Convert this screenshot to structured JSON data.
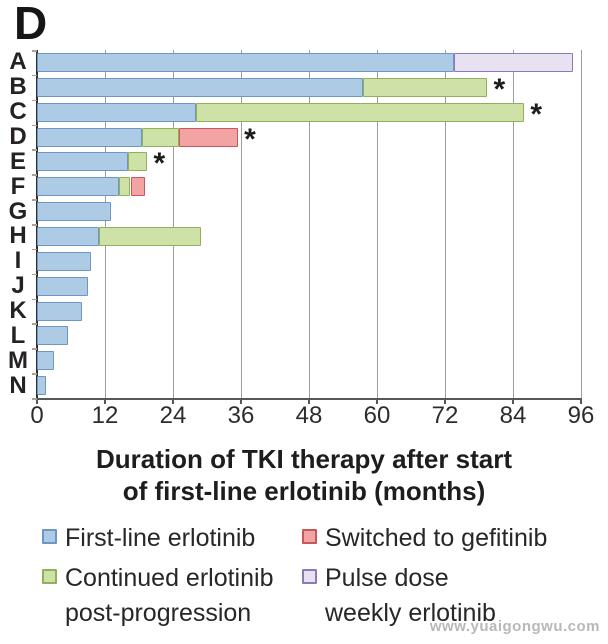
{
  "panel_label": "D",
  "watermark": "www.yuaigongwu.com",
  "chart_data": {
    "type": "bar",
    "orientation": "horizontal",
    "stacked": true,
    "title": "",
    "xlabel": "Duration of TKI therapy after start of first-line erlotinib (months)",
    "xlabel_lines": [
      "Duration of TKI therapy after start",
      "of first-line erlotinib (months)"
    ],
    "ylabel": "",
    "xlim": [
      0,
      96
    ],
    "xticks": [
      0,
      12,
      24,
      36,
      48,
      60,
      72,
      84,
      96
    ],
    "grid": true,
    "legend_position": "bottom",
    "categories": [
      "A",
      "B",
      "C",
      "D",
      "E",
      "F",
      "G",
      "H",
      "I",
      "J",
      "K",
      "L",
      "M",
      "N"
    ],
    "segment_types": {
      "first_line": {
        "label": "First-line erlotinib",
        "fill": "#aecbe5",
        "border": "#6e96c2"
      },
      "continued": {
        "label": "Continued erlotinib post-progression",
        "fill": "#cee2a8",
        "border": "#90b05b"
      },
      "switched": {
        "label": "Switched to gefitinib",
        "fill": "#f2a3a3",
        "border": "#c6585a"
      },
      "pulse": {
        "label": "Pulse dose weekly erlotinib",
        "fill": "#e7e1f1",
        "border": "#8d7ab5"
      }
    },
    "bars": [
      {
        "patient": "A",
        "segments": [
          {
            "type": "first_line",
            "months": 73.5
          },
          {
            "type": "pulse",
            "months": 21
          }
        ],
        "asterisk": false
      },
      {
        "patient": "B",
        "segments": [
          {
            "type": "first_line",
            "months": 57.5
          },
          {
            "type": "continued",
            "months": 22
          }
        ],
        "asterisk": true
      },
      {
        "patient": "C",
        "segments": [
          {
            "type": "first_line",
            "months": 28
          },
          {
            "type": "continued",
            "months": 58
          }
        ],
        "asterisk": true
      },
      {
        "patient": "D",
        "segments": [
          {
            "type": "first_line",
            "months": 18.5
          },
          {
            "type": "continued",
            "months": 6.5
          },
          {
            "type": "switched",
            "months": 10.5
          }
        ],
        "asterisk": true
      },
      {
        "patient": "E",
        "segments": [
          {
            "type": "first_line",
            "months": 16
          },
          {
            "type": "continued",
            "months": 3.5
          }
        ],
        "asterisk": true
      },
      {
        "patient": "F",
        "segments": [
          {
            "type": "first_line",
            "months": 14.5
          },
          {
            "type": "continued",
            "months": 2
          },
          {
            "type": "switched",
            "months": 2.5
          }
        ],
        "asterisk": false
      },
      {
        "patient": "G",
        "segments": [
          {
            "type": "first_line",
            "months": 13
          }
        ],
        "asterisk": false
      },
      {
        "patient": "H",
        "segments": [
          {
            "type": "first_line",
            "months": 11
          },
          {
            "type": "continued",
            "months": 18
          }
        ],
        "asterisk": false
      },
      {
        "patient": "I",
        "segments": [
          {
            "type": "first_line",
            "months": 9.5
          }
        ],
        "asterisk": false
      },
      {
        "patient": "J",
        "segments": [
          {
            "type": "first_line",
            "months": 9
          }
        ],
        "asterisk": false
      },
      {
        "patient": "K",
        "segments": [
          {
            "type": "first_line",
            "months": 8
          }
        ],
        "asterisk": false
      },
      {
        "patient": "L",
        "segments": [
          {
            "type": "first_line",
            "months": 5.5
          }
        ],
        "asterisk": false
      },
      {
        "patient": "M",
        "segments": [
          {
            "type": "first_line",
            "months": 3
          }
        ],
        "asterisk": false
      },
      {
        "patient": "N",
        "segments": [
          {
            "type": "first_line",
            "months": 1.5
          }
        ],
        "asterisk": false
      }
    ],
    "legend": [
      {
        "type": "first_line",
        "lines": [
          "First-line erlotinib"
        ]
      },
      {
        "type": "switched",
        "lines": [
          "Switched to gefitinib"
        ]
      },
      {
        "type": "continued",
        "lines": [
          "Continued erlotinib",
          "post-progression"
        ]
      },
      {
        "type": "pulse",
        "lines": [
          "Pulse dose",
          "weekly erlotinib"
        ]
      }
    ]
  }
}
